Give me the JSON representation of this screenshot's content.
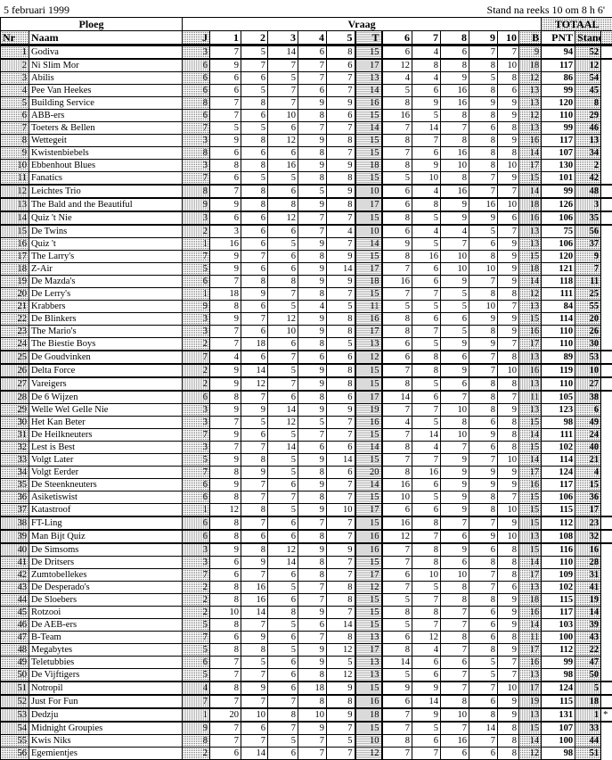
{
  "header": {
    "date": "5 februari 1999",
    "status": "Stand na reeks 10 om 8 h 6'"
  },
  "groups": {
    "ploeg": "Ploeg",
    "vraag": "Vraag",
    "totaal": "TOTAAL"
  },
  "columns": [
    "Nr",
    "Naam",
    "J",
    "1",
    "2",
    "3",
    "4",
    "5",
    "T",
    "6",
    "7",
    "8",
    "9",
    "10",
    "B",
    "PNT",
    "Stand"
  ],
  "rows": [
    [
      "1",
      "Godiva",
      "3",
      "7",
      "5",
      "14",
      "6",
      "8",
      "15",
      "6",
      "4",
      "6",
      "7",
      "7",
      "9",
      "94",
      "52",
      ""
    ],
    [
      "2",
      "Ni Slim Mor",
      "6",
      "9",
      "7",
      "7",
      "7",
      "6",
      "17",
      "12",
      "8",
      "8",
      "8",
      "10",
      "18",
      "117",
      "12",
      ""
    ],
    [
      "3",
      "Abilis",
      "6",
      "6",
      "6",
      "5",
      "7",
      "7",
      "13",
      "4",
      "4",
      "9",
      "5",
      "8",
      "12",
      "86",
      "54",
      ""
    ],
    [
      "4",
      "Pee Van Heekes",
      "6",
      "6",
      "5",
      "7",
      "6",
      "7",
      "14",
      "5",
      "6",
      "16",
      "8",
      "6",
      "13",
      "99",
      "45",
      ""
    ],
    [
      "5",
      "Building Service",
      "8",
      "7",
      "8",
      "7",
      "9",
      "9",
      "16",
      "8",
      "9",
      "16",
      "9",
      "9",
      "13",
      "120",
      "8",
      ""
    ],
    [
      "6",
      "ABB-ers",
      "6",
      "7",
      "6",
      "10",
      "8",
      "6",
      "15",
      "16",
      "5",
      "8",
      "8",
      "9",
      "12",
      "110",
      "29",
      ""
    ],
    [
      "7",
      "Toeters & Bellen",
      "7",
      "5",
      "5",
      "6",
      "7",
      "7",
      "14",
      "7",
      "14",
      "7",
      "6",
      "8",
      "13",
      "99",
      "46",
      ""
    ],
    [
      "8",
      "Wettegeit",
      "3",
      "9",
      "8",
      "12",
      "9",
      "8",
      "15",
      "8",
      "7",
      "8",
      "8",
      "9",
      "16",
      "117",
      "13",
      ""
    ],
    [
      "9",
      "Kwistenbiebels",
      "8",
      "6",
      "6",
      "6",
      "8",
      "7",
      "15",
      "7",
      "6",
      "16",
      "8",
      "8",
      "14",
      "107",
      "34",
      ""
    ],
    [
      "10",
      "Ebbenhout Blues",
      "3",
      "8",
      "8",
      "16",
      "9",
      "9",
      "18",
      "8",
      "9",
      "10",
      "8",
      "10",
      "17",
      "130",
      "2",
      ""
    ],
    [
      "11",
      "Fanatics",
      "7",
      "6",
      "5",
      "5",
      "8",
      "8",
      "15",
      "5",
      "10",
      "8",
      "7",
      "9",
      "15",
      "101",
      "42",
      ""
    ],
    [
      "12",
      "Leichtes Trio",
      "8",
      "7",
      "8",
      "6",
      "5",
      "9",
      "10",
      "6",
      "4",
      "16",
      "7",
      "7",
      "14",
      "99",
      "48",
      ""
    ],
    [
      "13",
      "The Bald and the Beautiful",
      "9",
      "9",
      "8",
      "8",
      "9",
      "8",
      "17",
      "6",
      "8",
      "9",
      "16",
      "10",
      "18",
      "126",
      "3",
      ""
    ],
    [
      "14",
      "Quiz 't Nie",
      "3",
      "6",
      "6",
      "12",
      "7",
      "7",
      "15",
      "8",
      "5",
      "9",
      "9",
      "6",
      "16",
      "106",
      "35",
      ""
    ],
    [
      "15",
      "De Twins",
      "2",
      "3",
      "6",
      "6",
      "7",
      "4",
      "10",
      "6",
      "4",
      "4",
      "5",
      "7",
      "13",
      "75",
      "56",
      ""
    ],
    [
      "16",
      "Quiz 't",
      "1",
      "16",
      "6",
      "5",
      "9",
      "7",
      "14",
      "9",
      "5",
      "7",
      "6",
      "9",
      "13",
      "106",
      "37",
      ""
    ],
    [
      "17",
      "The Larry's",
      "7",
      "9",
      "7",
      "6",
      "8",
      "9",
      "15",
      "8",
      "16",
      "10",
      "8",
      "9",
      "15",
      "120",
      "9",
      ""
    ],
    [
      "18",
      "Z-Air",
      "5",
      "9",
      "6",
      "6",
      "9",
      "14",
      "17",
      "7",
      "6",
      "10",
      "10",
      "9",
      "18",
      "121",
      "7",
      ""
    ],
    [
      "19",
      "De Mazda's",
      "6",
      "7",
      "8",
      "8",
      "9",
      "9",
      "18",
      "16",
      "6",
      "9",
      "7",
      "9",
      "14",
      "118",
      "11",
      ""
    ],
    [
      "20",
      "De Lerry's",
      "1",
      "18",
      "9",
      "7",
      "8",
      "7",
      "15",
      "7",
      "7",
      "5",
      "8",
      "8",
      "12",
      "111",
      "25",
      ""
    ],
    [
      "21",
      "Krabbers",
      "9",
      "8",
      "6",
      "5",
      "4",
      "5",
      "11",
      "5",
      "5",
      "5",
      "10",
      "7",
      "13",
      "84",
      "55",
      ""
    ],
    [
      "22",
      "De Blinkers",
      "3",
      "9",
      "7",
      "12",
      "9",
      "8",
      "16",
      "8",
      "6",
      "6",
      "9",
      "9",
      "15",
      "114",
      "20",
      ""
    ],
    [
      "23",
      "The Mario's",
      "3",
      "7",
      "6",
      "10",
      "9",
      "8",
      "17",
      "8",
      "7",
      "5",
      "8",
      "9",
      "16",
      "110",
      "26",
      ""
    ],
    [
      "24",
      "The Biestie Boys",
      "2",
      "7",
      "18",
      "6",
      "8",
      "5",
      "13",
      "6",
      "5",
      "9",
      "9",
      "7",
      "17",
      "110",
      "30",
      ""
    ],
    [
      "25",
      "De Goudvinken",
      "7",
      "4",
      "6",
      "7",
      "6",
      "6",
      "12",
      "6",
      "8",
      "6",
      "7",
      "8",
      "13",
      "89",
      "53",
      ""
    ],
    [
      "26",
      "Delta Force",
      "2",
      "9",
      "14",
      "5",
      "9",
      "8",
      "15",
      "7",
      "8",
      "9",
      "7",
      "10",
      "16",
      "119",
      "10",
      ""
    ],
    [
      "27",
      "Vareigers",
      "2",
      "9",
      "12",
      "7",
      "9",
      "8",
      "15",
      "8",
      "5",
      "6",
      "8",
      "8",
      "13",
      "110",
      "27",
      ""
    ],
    [
      "28",
      "De 6 Wijzen",
      "6",
      "8",
      "7",
      "6",
      "8",
      "6",
      "17",
      "14",
      "6",
      "7",
      "8",
      "7",
      "11",
      "105",
      "38",
      ""
    ],
    [
      "29",
      "Welle Wel Gelle Nie",
      "3",
      "9",
      "9",
      "14",
      "9",
      "9",
      "19",
      "7",
      "7",
      "10",
      "8",
      "9",
      "13",
      "123",
      "6",
      ""
    ],
    [
      "30",
      "Het Kan Beter",
      "3",
      "7",
      "5",
      "12",
      "5",
      "7",
      "16",
      "4",
      "5",
      "8",
      "6",
      "8",
      "15",
      "98",
      "49",
      ""
    ],
    [
      "31",
      "De Heilkneuters",
      "7",
      "9",
      "6",
      "5",
      "7",
      "7",
      "15",
      "7",
      "14",
      "10",
      "9",
      "8",
      "14",
      "111",
      "24",
      ""
    ],
    [
      "32",
      "Lest is Best",
      "3",
      "7",
      "7",
      "14",
      "6",
      "6",
      "14",
      "8",
      "4",
      "7",
      "6",
      "8",
      "15",
      "102",
      "40",
      ""
    ],
    [
      "33",
      "Volgt Later",
      "5",
      "9",
      "8",
      "5",
      "9",
      "14",
      "15",
      "7",
      "7",
      "9",
      "7",
      "10",
      "14",
      "114",
      "21",
      ""
    ],
    [
      "34",
      "Volgt Eerder",
      "7",
      "8",
      "9",
      "5",
      "8",
      "6",
      "20",
      "8",
      "16",
      "9",
      "9",
      "9",
      "17",
      "124",
      "4",
      ""
    ],
    [
      "35",
      "De Steenkneuters",
      "6",
      "9",
      "7",
      "6",
      "9",
      "7",
      "14",
      "16",
      "6",
      "9",
      "9",
      "9",
      "16",
      "117",
      "15",
      ""
    ],
    [
      "36",
      "Asiketiswist",
      "6",
      "8",
      "7",
      "7",
      "8",
      "7",
      "15",
      "10",
      "5",
      "9",
      "8",
      "7",
      "15",
      "106",
      "36",
      ""
    ],
    [
      "37",
      "Katastroof",
      "1",
      "12",
      "8",
      "5",
      "9",
      "10",
      "17",
      "6",
      "6",
      "9",
      "8",
      "10",
      "15",
      "115",
      "17",
      ""
    ],
    [
      "38",
      "FT-Ling",
      "6",
      "8",
      "7",
      "6",
      "7",
      "7",
      "15",
      "16",
      "8",
      "7",
      "7",
      "9",
      "15",
      "112",
      "23",
      ""
    ],
    [
      "39",
      "Man Bijt Quiz",
      "6",
      "8",
      "6",
      "6",
      "8",
      "7",
      "16",
      "12",
      "7",
      "6",
      "9",
      "10",
      "13",
      "108",
      "32",
      ""
    ],
    [
      "40",
      "De Simsoms",
      "3",
      "9",
      "8",
      "12",
      "9",
      "9",
      "16",
      "7",
      "8",
      "9",
      "6",
      "8",
      "15",
      "116",
      "16",
      ""
    ],
    [
      "41",
      "De Dritsers",
      "3",
      "6",
      "9",
      "14",
      "8",
      "7",
      "15",
      "7",
      "8",
      "6",
      "8",
      "8",
      "14",
      "110",
      "28",
      ""
    ],
    [
      "42",
      "Zumtobellekes",
      "7",
      "6",
      "7",
      "6",
      "8",
      "7",
      "17",
      "6",
      "10",
      "10",
      "7",
      "8",
      "17",
      "109",
      "31",
      ""
    ],
    [
      "43",
      "De Desperado's",
      "2",
      "8",
      "16",
      "5",
      "7",
      "8",
      "12",
      "7",
      "5",
      "8",
      "7",
      "6",
      "13",
      "102",
      "41",
      ""
    ],
    [
      "44",
      "De Sloebers",
      "2",
      "8",
      "16",
      "6",
      "7",
      "8",
      "15",
      "5",
      "7",
      "8",
      "8",
      "9",
      "18",
      "115",
      "19",
      ""
    ],
    [
      "45",
      "Rotzooi",
      "2",
      "10",
      "14",
      "8",
      "9",
      "7",
      "15",
      "8",
      "8",
      "7",
      "6",
      "9",
      "16",
      "117",
      "14",
      ""
    ],
    [
      "46",
      "De AEB-ers",
      "5",
      "8",
      "7",
      "5",
      "6",
      "14",
      "15",
      "5",
      "7",
      "7",
      "6",
      "9",
      "14",
      "103",
      "39",
      ""
    ],
    [
      "47",
      "B-Team",
      "7",
      "6",
      "9",
      "6",
      "7",
      "8",
      "13",
      "6",
      "12",
      "8",
      "6",
      "8",
      "11",
      "100",
      "43",
      ""
    ],
    [
      "48",
      "Megabytes",
      "5",
      "8",
      "8",
      "5",
      "9",
      "12",
      "17",
      "8",
      "4",
      "7",
      "8",
      "9",
      "17",
      "112",
      "22",
      ""
    ],
    [
      "49",
      "Teletubbies",
      "6",
      "7",
      "5",
      "6",
      "9",
      "5",
      "13",
      "14",
      "6",
      "6",
      "5",
      "7",
      "16",
      "99",
      "47",
      ""
    ],
    [
      "50",
      "De Vijftigers",
      "5",
      "7",
      "7",
      "6",
      "8",
      "12",
      "13",
      "5",
      "6",
      "7",
      "5",
      "7",
      "13",
      "98",
      "50",
      ""
    ],
    [
      "51",
      "Notropil",
      "4",
      "8",
      "9",
      "6",
      "18",
      "9",
      "15",
      "9",
      "9",
      "7",
      "7",
      "10",
      "17",
      "124",
      "5",
      ""
    ],
    [
      "52",
      "Just For Fun",
      "7",
      "7",
      "7",
      "7",
      "8",
      "8",
      "16",
      "6",
      "14",
      "8",
      "6",
      "9",
      "19",
      "115",
      "18",
      ""
    ],
    [
      "53",
      "Dedzju",
      "1",
      "20",
      "10",
      "8",
      "10",
      "9",
      "18",
      "7",
      "9",
      "10",
      "8",
      "9",
      "13",
      "131",
      "1",
      "*"
    ],
    [
      "54",
      "Midnight Groupies",
      "9",
      "7",
      "6",
      "7",
      "9",
      "7",
      "15",
      "7",
      "5",
      "7",
      "14",
      "8",
      "15",
      "107",
      "33",
      ""
    ],
    [
      "55",
      "Kwis Niks",
      "8",
      "7",
      "7",
      "5",
      "7",
      "5",
      "10",
      "8",
      "6",
      "16",
      "7",
      "8",
      "14",
      "100",
      "44",
      ""
    ],
    [
      "56",
      "Egemientjes",
      "2",
      "6",
      "14",
      "6",
      "7",
      "7",
      "12",
      "7",
      "7",
      "6",
      "6",
      "8",
      "12",
      "98",
      "51",
      ""
    ]
  ]
}
